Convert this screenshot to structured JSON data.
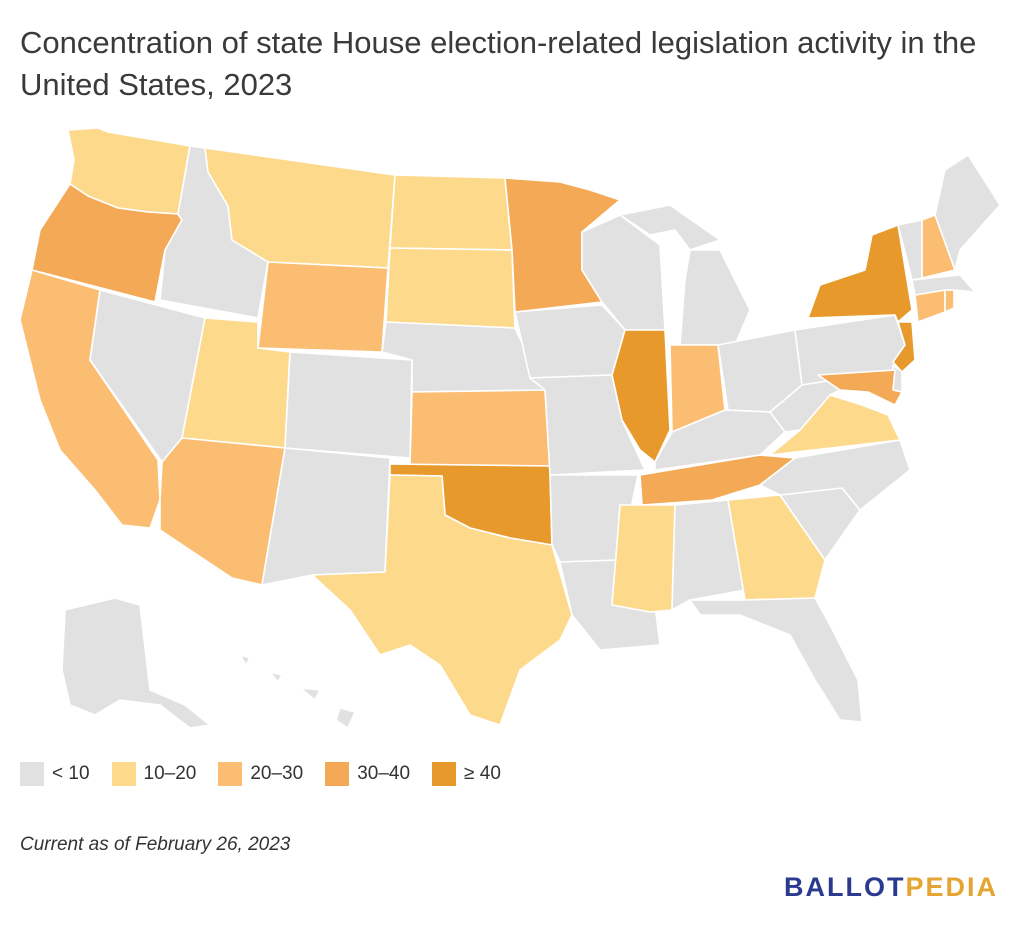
{
  "title": "Concentration of state House election-related legislation activity in the United States, 2023",
  "footnote": "Current as of February 26, 2023",
  "brand": {
    "part1": "BALLOT",
    "part2": "PEDIA"
  },
  "legend": [
    {
      "label": "< 10",
      "color": "#e1e1e1"
    },
    {
      "label": "10–20",
      "color": "#fdd98c"
    },
    {
      "label": "20–30",
      "color": "#fbbd72"
    },
    {
      "label": "30–40",
      "color": "#f3a956"
    },
    {
      "label": "≥ 40",
      "color": "#e8992c"
    }
  ],
  "states": {
    "WA": "10-20",
    "OR": "30-40",
    "CA": "20-30",
    "NV": "<10",
    "ID": "<10",
    "MT": "10-20",
    "WY": "20-30",
    "UT": "10-20",
    "AZ": "20-30",
    "CO": "<10",
    "NM": "<10",
    "ND": "10-20",
    "SD": "10-20",
    "NE": "<10",
    "KS": "20-30",
    "OK": ">=40",
    "TX": "10-20",
    "MN": "30-40",
    "IA": "<10",
    "MO": "<10",
    "AR": "<10",
    "LA": "<10",
    "WI": "<10",
    "IL": ">=40",
    "MI": "<10",
    "IN": "20-30",
    "OH": "<10",
    "KY": "<10",
    "TN": "30-40",
    "MS": "10-20",
    "AL": "<10",
    "GA": "10-20",
    "FL": "<10",
    "SC": "<10",
    "NC": "<10",
    "VA": "10-20",
    "WV": "<10",
    "PA": "<10",
    "NY": ">=40",
    "NJ": ">=40",
    "DE": "<10",
    "MD": "30-40",
    "CT": "20-30",
    "RI": "20-30",
    "MA": "<10",
    "VT": "<10",
    "NH": "20-30",
    "ME": "<10",
    "AK": "<10",
    "HI": "<10"
  }
}
